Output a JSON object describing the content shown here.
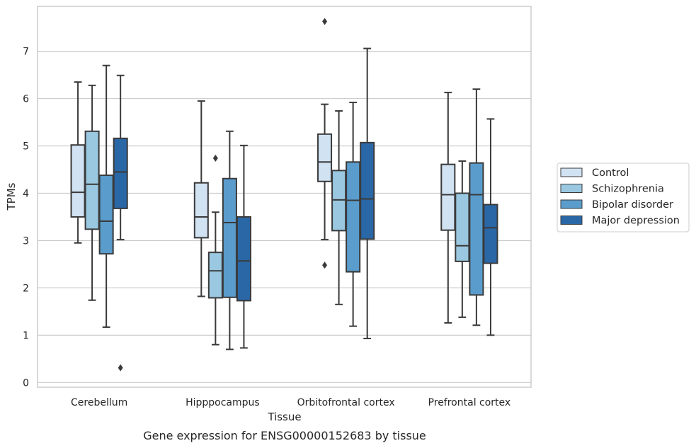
{
  "chart_data": {
    "type": "box",
    "xlabel": "Tissue",
    "ylabel": "TPMs",
    "caption": "Gene expression for ENSG00000152683 by tissue",
    "ylim": [
      -0.1,
      7.95
    ],
    "yticks": [
      0,
      1,
      2,
      3,
      4,
      5,
      6,
      7
    ],
    "grid": "horizontal",
    "legend_position": "right",
    "categories": [
      "Cerebellum",
      "Hipppocampus",
      "Orbitofrontal cortex",
      "Prefrontal cortex"
    ],
    "series": [
      {
        "name": "Control",
        "color": "#d1e2f2",
        "boxes": [
          {
            "whislo": 2.95,
            "q1": 3.5,
            "med": 4.02,
            "q3": 5.02,
            "whishi": 6.35,
            "fliers": []
          },
          {
            "whislo": 1.82,
            "q1": 3.06,
            "med": 3.5,
            "q3": 4.22,
            "whishi": 5.95,
            "fliers": []
          },
          {
            "whislo": 3.02,
            "q1": 4.25,
            "med": 4.66,
            "q3": 5.25,
            "whishi": 5.88,
            "fliers": [
              7.63,
              2.48
            ]
          },
          {
            "whislo": 1.26,
            "q1": 3.22,
            "med": 3.97,
            "q3": 4.61,
            "whishi": 6.13,
            "fliers": []
          }
        ]
      },
      {
        "name": "Schizophrenia",
        "color": "#9ac8e0",
        "boxes": [
          {
            "whislo": 1.74,
            "q1": 3.24,
            "med": 4.19,
            "q3": 5.31,
            "whishi": 6.28,
            "fliers": []
          },
          {
            "whislo": 0.8,
            "q1": 1.79,
            "med": 2.36,
            "q3": 2.75,
            "whishi": 3.6,
            "fliers": [
              4.74
            ]
          },
          {
            "whislo": 1.65,
            "q1": 3.21,
            "med": 3.86,
            "q3": 4.48,
            "whishi": 5.74,
            "fliers": []
          },
          {
            "whislo": 1.38,
            "q1": 2.56,
            "med": 2.89,
            "q3": 4.0,
            "whishi": 4.68,
            "fliers": []
          }
        ]
      },
      {
        "name": "Bipolar disorder",
        "color": "#5a9ccc",
        "boxes": [
          {
            "whislo": 1.17,
            "q1": 2.72,
            "med": 3.41,
            "q3": 4.38,
            "whishi": 6.7,
            "fliers": []
          },
          {
            "whislo": 0.7,
            "q1": 1.8,
            "med": 3.38,
            "q3": 4.31,
            "whishi": 5.31,
            "fliers": []
          },
          {
            "whislo": 1.19,
            "q1": 2.34,
            "med": 3.85,
            "q3": 4.66,
            "whishi": 5.92,
            "fliers": []
          },
          {
            "whislo": 1.21,
            "q1": 1.85,
            "med": 3.97,
            "q3": 4.64,
            "whishi": 6.2,
            "fliers": []
          }
        ]
      },
      {
        "name": "Major depression",
        "color": "#2a67a6",
        "boxes": [
          {
            "whislo": 3.02,
            "q1": 3.68,
            "med": 4.45,
            "q3": 5.16,
            "whishi": 6.49,
            "fliers": [
              0.31
            ]
          },
          {
            "whislo": 0.73,
            "q1": 1.73,
            "med": 2.57,
            "q3": 3.5,
            "whishi": 5.01,
            "fliers": []
          },
          {
            "whislo": 0.93,
            "q1": 3.03,
            "med": 3.88,
            "q3": 5.07,
            "whishi": 7.06,
            "fliers": []
          },
          {
            "whislo": 1.0,
            "q1": 2.52,
            "med": 3.27,
            "q3": 3.76,
            "whishi": 5.57,
            "fliers": []
          }
        ]
      }
    ]
  }
}
